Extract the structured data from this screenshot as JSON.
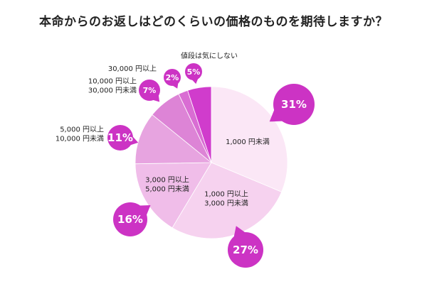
{
  "title": "本命からのお返しはどのくらいの価格のものを期待しますか？",
  "chart_data": {
    "type": "pie",
    "title": "本命からのお返しはどのくらいの価格のものを期待しますか？",
    "slices": [
      {
        "label": [
          "1,000 円未満"
        ],
        "value": 31,
        "display": "31%",
        "color": "#fbe7f6"
      },
      {
        "label": [
          "1,000 円以上",
          "3,000 円未満"
        ],
        "value": 27,
        "display": "27%",
        "color": "#f6d2ef"
      },
      {
        "label": [
          "3,000 円以上",
          "5,000 円未満"
        ],
        "value": 16,
        "display": "16%",
        "color": "#f0bde9"
      },
      {
        "label": [
          "5,000 円以上",
          "10,000 円未満"
        ],
        "value": 11,
        "display": "11%",
        "color": "#e7a4e0"
      },
      {
        "label": [
          "10,000 円以上",
          "30,000 円未満"
        ],
        "value": 7,
        "display": "7%",
        "color": "#dd84d6"
      },
      {
        "label": [
          "30,000 円以上"
        ],
        "value": 2,
        "display": "2%",
        "color": "#d96dd3"
      },
      {
        "label": [
          "値段は気にしない"
        ],
        "value": 5,
        "display": "5%",
        "color": "#d03ccc"
      }
    ],
    "bubble_color": "#cc33c4",
    "legend": "none"
  }
}
